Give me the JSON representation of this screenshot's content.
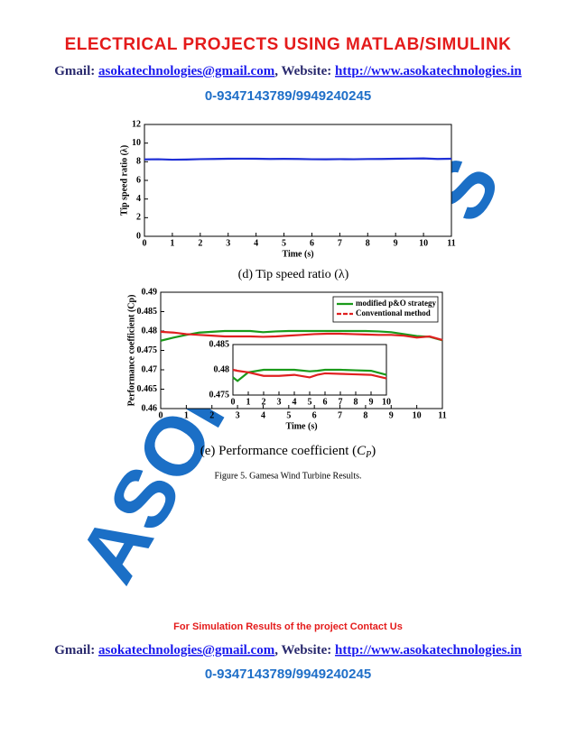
{
  "header": {
    "title": "ELECTRICAL PROJECTS USING MATLAB/SIMULINK",
    "contact": {
      "gmail_label": "Gmail: ",
      "email": "asokatechnologies@gmail.com",
      "website_label": ", Website: ",
      "url": "http://www.asokatechnologies.in"
    },
    "phone": "0-9347143789/9949240245"
  },
  "watermark": [
    "ASOKA",
    "S"
  ],
  "chart_data": [
    {
      "type": "line",
      "ylabel": "Tip speed ratio (λ)",
      "xlabel": "Time (s)",
      "x": [
        0,
        0.5,
        1,
        1.5,
        2,
        2.5,
        3,
        3.5,
        4,
        4.5,
        5,
        5.5,
        6,
        6.5,
        7,
        7.5,
        8,
        8.5,
        9,
        9.5,
        10,
        10.5,
        11
      ],
      "series": [
        {
          "color": "#1f2fd6",
          "values": [
            8.25,
            8.27,
            8.22,
            8.24,
            8.28,
            8.3,
            8.32,
            8.33,
            8.32,
            8.3,
            8.31,
            8.3,
            8.27,
            8.26,
            8.28,
            8.27,
            8.29,
            8.3,
            8.32,
            8.34,
            8.36,
            8.3,
            8.32
          ]
        }
      ],
      "xlim": [
        0,
        11
      ],
      "xticks": [
        0,
        1,
        2,
        3,
        4,
        5,
        6,
        7,
        8,
        9,
        10,
        11
      ],
      "ylim": [
        0,
        12
      ],
      "yticks": [
        0,
        2,
        4,
        6,
        8,
        10,
        12
      ]
    },
    {
      "type": "line",
      "ylabel": "Performance coefficient (Cp)",
      "xlabel": "Time (s)",
      "legend": "upper right",
      "x": [
        0,
        0.5,
        1,
        1.5,
        2,
        2.5,
        3,
        3.5,
        4,
        4.5,
        5,
        5.5,
        6,
        6.5,
        7,
        7.5,
        8,
        8.5,
        9,
        9.5,
        10,
        10.5,
        11
      ],
      "series": [
        {
          "name": "modified p&O strategy",
          "color": "#1a9a1a",
          "values": [
            0.4775,
            0.4783,
            0.479,
            0.4796,
            0.4798,
            0.48,
            0.48,
            0.48,
            0.4797,
            0.4799,
            0.48,
            0.48,
            0.48,
            0.48,
            0.48,
            0.48,
            0.48,
            0.4799,
            0.4797,
            0.4792,
            0.4787,
            0.4785,
            0.4776
          ]
        },
        {
          "name": "Conventional method",
          "color": "#e02020",
          "values": [
            0.4798,
            0.4796,
            0.4792,
            0.479,
            0.4788,
            0.4786,
            0.4786,
            0.4786,
            0.4785,
            0.4786,
            0.4788,
            0.479,
            0.4792,
            0.4793,
            0.4793,
            0.4792,
            0.4791,
            0.479,
            0.479,
            0.4788,
            0.4783,
            0.4786,
            0.4777
          ]
        }
      ],
      "xlim": [
        0,
        11
      ],
      "xticks": [
        0,
        1,
        2,
        3,
        4,
        5,
        6,
        7,
        8,
        9,
        10,
        11
      ],
      "ylim": [
        0.46,
        0.49
      ],
      "yticks": [
        0.46,
        0.465,
        0.47,
        0.475,
        0.48,
        0.485,
        0.49
      ]
    },
    {
      "type": "line",
      "x": [
        0,
        0.3,
        1,
        2,
        3,
        4,
        5,
        5.5,
        6,
        7,
        8,
        9,
        10
      ],
      "series": [
        {
          "color": "#1a9a1a",
          "values": [
            0.4785,
            0.4778,
            0.4795,
            0.48,
            0.48,
            0.48,
            0.4797,
            0.4798,
            0.48,
            0.48,
            0.4799,
            0.4798,
            0.479
          ]
        },
        {
          "color": "#e02020",
          "values": [
            0.48,
            0.4798,
            0.4795,
            0.4788,
            0.4788,
            0.479,
            0.4785,
            0.479,
            0.4793,
            0.4792,
            0.4791,
            0.479,
            0.4783
          ]
        }
      ],
      "xlim": [
        0,
        10
      ],
      "xticks": [
        0,
        1,
        2,
        3,
        4,
        5,
        6,
        7,
        8,
        9,
        10
      ],
      "ylim": [
        0.475,
        0.485
      ],
      "yticks": [
        0.475,
        0.48,
        0.485
      ]
    }
  ],
  "captions": {
    "d": "(d) Tip speed ratio (λ)",
    "e_parts": [
      "(e) Performance coefficient (",
      "C",
      "P",
      ")"
    ],
    "figure": "Figure 5. Gamesa Wind Turbine Results."
  },
  "footer": {
    "note": "For Simulation Results of the project Contact Us",
    "contact": {
      "gmail_label": "Gmail: ",
      "email": "asokatechnologies@gmail.com",
      "website_label": ", Website: ",
      "url": "http://www.asokatechnologies.in"
    },
    "phone": "0-9347143789/9949240245"
  }
}
